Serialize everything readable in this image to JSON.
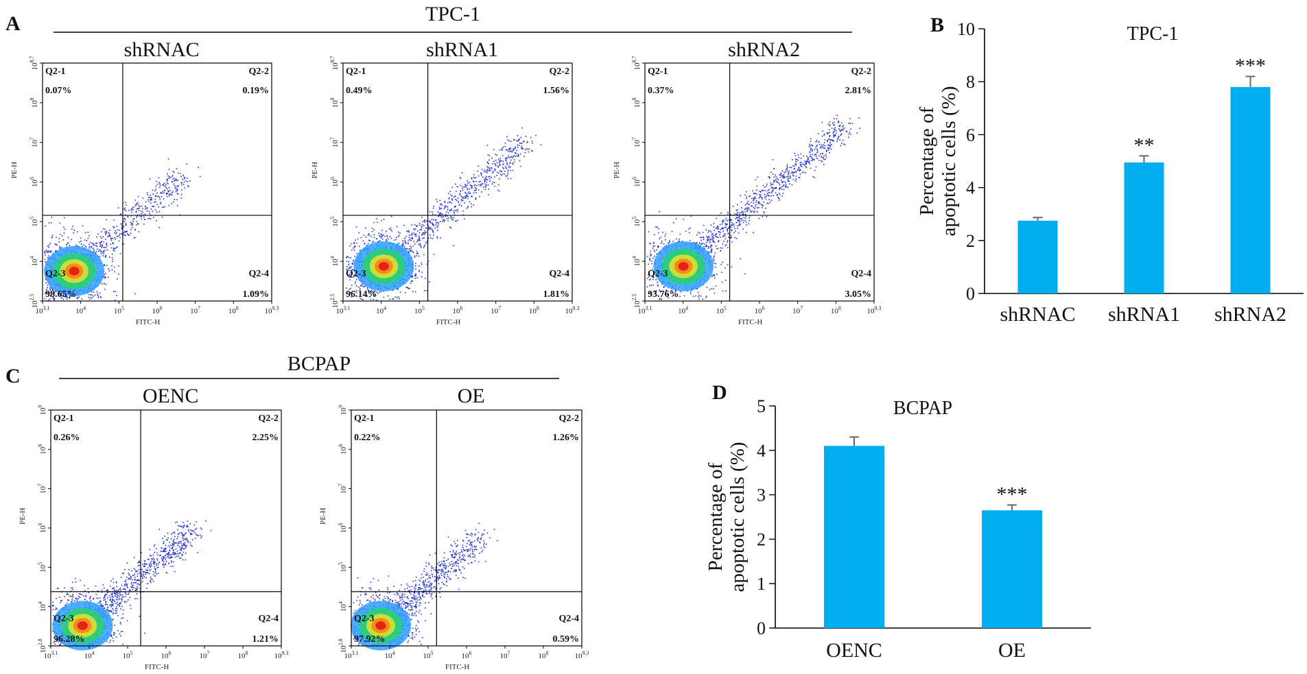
{
  "panels": {
    "a": "A",
    "b": "B",
    "c": "C",
    "d": "D"
  },
  "groups": {
    "tpc": "TPC-1",
    "bcpap": "BCPAP"
  },
  "quadrant_names": {
    "ul": "Q2-1",
    "ur": "Q2-2",
    "ll": "Q2-3",
    "lr": "Q2-4"
  },
  "axis_names": {
    "x": "FITC-H",
    "y": "PE-H"
  },
  "colors": {
    "bar": "#00aeef",
    "error": "#666666",
    "axis": "#000000"
  },
  "flow_plots": [
    {
      "title": "shRNAC",
      "quadrants": {
        "ul": "0.07%",
        "ur": "0.19%",
        "ll": "98.65%",
        "lr": "1.09%"
      },
      "x_ticks": [
        "10",
        "10",
        "10",
        "10",
        "10",
        "10",
        "10"
      ],
      "x_exps": [
        "3.1",
        "4",
        "5",
        "6",
        "7",
        "8",
        "9.3"
      ],
      "y_ticks": [
        "10",
        "10",
        "10",
        "10",
        "10",
        "10",
        "10"
      ],
      "y_exps": [
        "2.5",
        "4",
        "5",
        "6",
        "7",
        "8",
        "8.7"
      ]
    },
    {
      "title": "shRNA1",
      "quadrants": {
        "ul": "0.49%",
        "ur": "1.56%",
        "ll": "96.14%",
        "lr": "1.81%"
      },
      "x_ticks": [
        "10",
        "10",
        "10",
        "10",
        "10",
        "10",
        "10"
      ],
      "x_exps": [
        "3.1",
        "4",
        "5",
        "6",
        "7",
        "8",
        "9.3"
      ],
      "y_ticks": [
        "10",
        "10",
        "10",
        "10",
        "10",
        "10",
        "10"
      ],
      "y_exps": [
        "2.5",
        "4",
        "5",
        "6",
        "7",
        "8",
        "8.7"
      ]
    },
    {
      "title": "shRNA2",
      "quadrants": {
        "ul": "0.37%",
        "ur": "2.81%",
        "ll": "93.76%",
        "lr": "3.05%"
      },
      "x_ticks": [
        "10",
        "10",
        "10",
        "10",
        "10",
        "10",
        "10"
      ],
      "x_exps": [
        "3.1",
        "4",
        "5",
        "6",
        "7",
        "8",
        "9.3"
      ],
      "y_ticks": [
        "10",
        "10",
        "10",
        "10",
        "10",
        "10",
        "10"
      ],
      "y_exps": [
        "2.5",
        "4",
        "5",
        "6",
        "7",
        "8",
        "8.7"
      ]
    },
    {
      "title": "OENC",
      "quadrants": {
        "ul": "0.26%",
        "ur": "2.25%",
        "ll": "96.28%",
        "lr": "1.21%"
      },
      "x_ticks": [
        "10",
        "10",
        "10",
        "10",
        "10",
        "10",
        "10"
      ],
      "x_exps": [
        "3.1",
        "4",
        "5",
        "6",
        "7",
        "8",
        "9.3"
      ],
      "y_ticks": [
        "10",
        "10",
        "10",
        "10",
        "10",
        "10",
        "10"
      ],
      "y_exps": [
        "2.8",
        "4",
        "5",
        "6",
        "7",
        "8",
        "9"
      ]
    },
    {
      "title": "OE",
      "quadrants": {
        "ul": "0.22%",
        "ur": "1.26%",
        "ll": "97.92%",
        "lr": "0.59%"
      },
      "x_ticks": [
        "10",
        "10",
        "10",
        "10",
        "10",
        "10",
        "10"
      ],
      "x_exps": [
        "3.1",
        "4",
        "5",
        "6",
        "7",
        "8",
        "9.3"
      ],
      "y_ticks": [
        "10",
        "10",
        "10",
        "10",
        "10",
        "10",
        "10"
      ],
      "y_exps": [
        "2.8",
        "4",
        "5",
        "6",
        "7",
        "8",
        "9"
      ]
    }
  ],
  "chart_data": [
    {
      "type": "bar",
      "title": "TPC-1",
      "ylabel": "Percentage of apoptotic cells (%)",
      "ylabel_lines": [
        "Percentage of",
        "apoptotic cells (%)"
      ],
      "categories": [
        "shRNAC",
        "shRNA1",
        "shRNA2"
      ],
      "values": [
        2.75,
        4.95,
        7.8
      ],
      "errors": [
        0.12,
        0.25,
        0.4
      ],
      "significance": [
        "",
        "**",
        "***"
      ],
      "ylim": [
        0,
        10
      ],
      "yticks": [
        0,
        2,
        4,
        6,
        8,
        10
      ],
      "grid": false,
      "legend": "none"
    },
    {
      "type": "bar",
      "title": "BCPAP",
      "ylabel": "Percentage of apoptotic cells (%)",
      "ylabel_lines": [
        "Percentage of",
        "apoptotic cells (%)"
      ],
      "categories": [
        "OENC",
        "OE"
      ],
      "values": [
        4.1,
        2.65
      ],
      "errors": [
        0.2,
        0.12
      ],
      "significance": [
        "",
        "***"
      ],
      "ylim": [
        0,
        5
      ],
      "yticks": [
        0,
        1,
        2,
        3,
        4,
        5
      ],
      "grid": false,
      "legend": "none"
    }
  ]
}
